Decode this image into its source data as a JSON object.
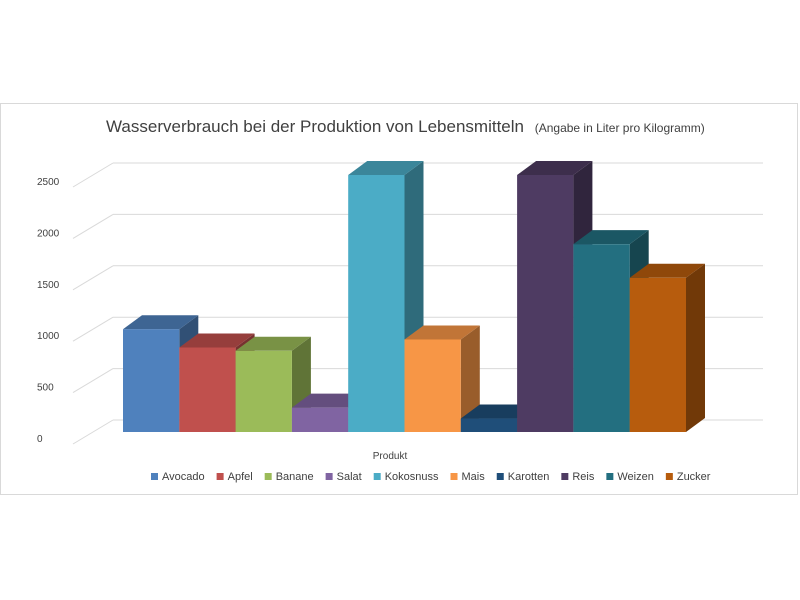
{
  "chart_data": {
    "type": "bar",
    "title": "Wasserverbrauch bei der Produktion von Lebensmitteln",
    "subtitle": "(Angabe in Liter pro Kilogramm)",
    "xlabel": "Produkt",
    "ylabel": "",
    "ylim": [
      0,
      2500
    ],
    "yticks": [
      0,
      500,
      1000,
      1500,
      2000,
      2500
    ],
    "ytick_labels": [
      "0",
      "500",
      "1000",
      "1500",
      "2000",
      "2500"
    ],
    "grid": true,
    "legend_position": "bottom",
    "series": [
      {
        "name": "Avocado",
        "value": 1000,
        "color": "#4f81bd"
      },
      {
        "name": "Apfel",
        "value": 822,
        "color": "#c0504d"
      },
      {
        "name": "Banane",
        "value": 790,
        "color": "#9bbb59"
      },
      {
        "name": "Salat",
        "value": 237,
        "color": "#8064a2"
      },
      {
        "name": "Kokosnuss",
        "value": 2500,
        "color": "#4bacc6"
      },
      {
        "name": "Mais",
        "value": 900,
        "color": "#f79646"
      },
      {
        "name": "Karotten",
        "value": 131,
        "color": "#1f4e79"
      },
      {
        "name": "Reis",
        "value": 2500,
        "color": "#4e3b62"
      },
      {
        "name": "Weizen",
        "value": 1827,
        "color": "#236f80"
      },
      {
        "name": "Zucker",
        "value": 1500,
        "color": "#b75c0d"
      }
    ]
  }
}
